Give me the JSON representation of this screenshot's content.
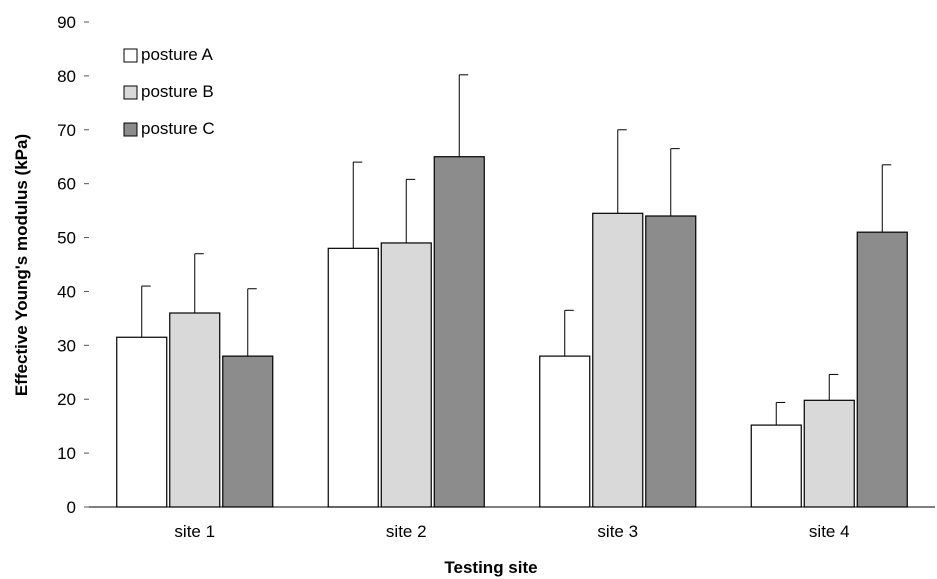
{
  "chart_data": {
    "type": "bar",
    "xlabel": "Testing site",
    "ylabel": "Effective Young's modulus (kPa)",
    "ylim": [
      0,
      90
    ],
    "yticks": [
      0,
      10,
      20,
      30,
      40,
      50,
      60,
      70,
      80,
      90
    ],
    "categories": [
      "site 1",
      "site 2",
      "site 3",
      "site 4"
    ],
    "series": [
      {
        "name": "posture A",
        "values": [
          31.5,
          48,
          28,
          15.2
        ],
        "errors": [
          9.5,
          16,
          8.5,
          4.2
        ],
        "color": "#ffffff"
      },
      {
        "name": "posture B",
        "values": [
          36,
          49,
          54.5,
          19.8
        ],
        "errors": [
          11,
          11.8,
          15.5,
          4.8
        ],
        "color": "#d9d9d9"
      },
      {
        "name": "posture C",
        "values": [
          28,
          65,
          54,
          51
        ],
        "errors": [
          12.5,
          15.2,
          12.5,
          12.5
        ],
        "color": "#8c8c8c"
      }
    ],
    "legend_position": "top-left",
    "grid": false
  }
}
